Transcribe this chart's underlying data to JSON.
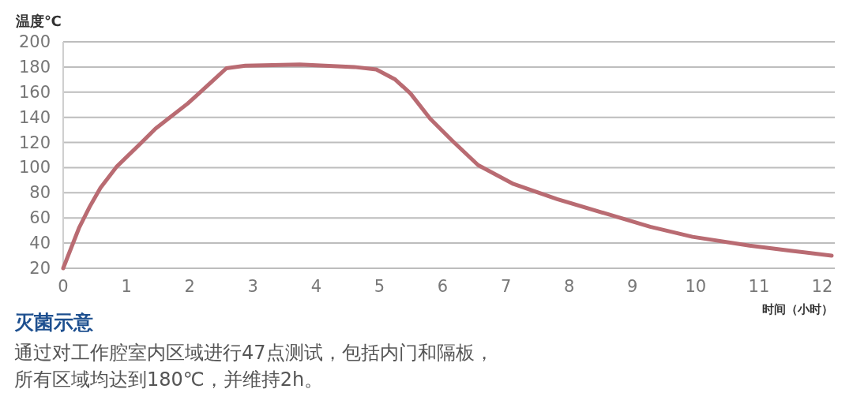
{
  "chart_data": {
    "type": "line",
    "title": "灭菌示意",
    "xlabel": "时间（小时）",
    "ylabel": "温度℃",
    "annotations": [
      "通过对工作腔室内区域进行47点测试，包括内门和隔板，所有区域均达到180℃，并维持2h。"
    ],
    "x": [
      0,
      0.25,
      0.42,
      0.59,
      0.85,
      1.24,
      1.46,
      1.97,
      2.32,
      2.58,
      2.88,
      3.74,
      4.6,
      4.95,
      5.25,
      5.49,
      5.8,
      6.16,
      6.56,
      7.12,
      7.81,
      8.61,
      9.28,
      9.95,
      10.85,
      11.5,
      12.15
    ],
    "series": [
      {
        "color": "#b96b72",
        "values": [
          20,
          52,
          69,
          84,
          101,
          120,
          131,
          151,
          167,
          179,
          181,
          182,
          180,
          178,
          170,
          159,
          139,
          121,
          102,
          87,
          75,
          63,
          53,
          45,
          38,
          34,
          30
        ]
      }
    ],
    "xlim": [
      0,
      12.2
    ],
    "ylim": [
      20,
      200
    ],
    "xticks": [
      0,
      1,
      2,
      3,
      4,
      5,
      6,
      7,
      8,
      9,
      10,
      11,
      12
    ],
    "yticks": [
      20,
      40,
      60,
      80,
      100,
      120,
      140,
      160,
      180,
      200
    ],
    "grid": "y",
    "marker": "none",
    "line_style": "solid"
  }
}
